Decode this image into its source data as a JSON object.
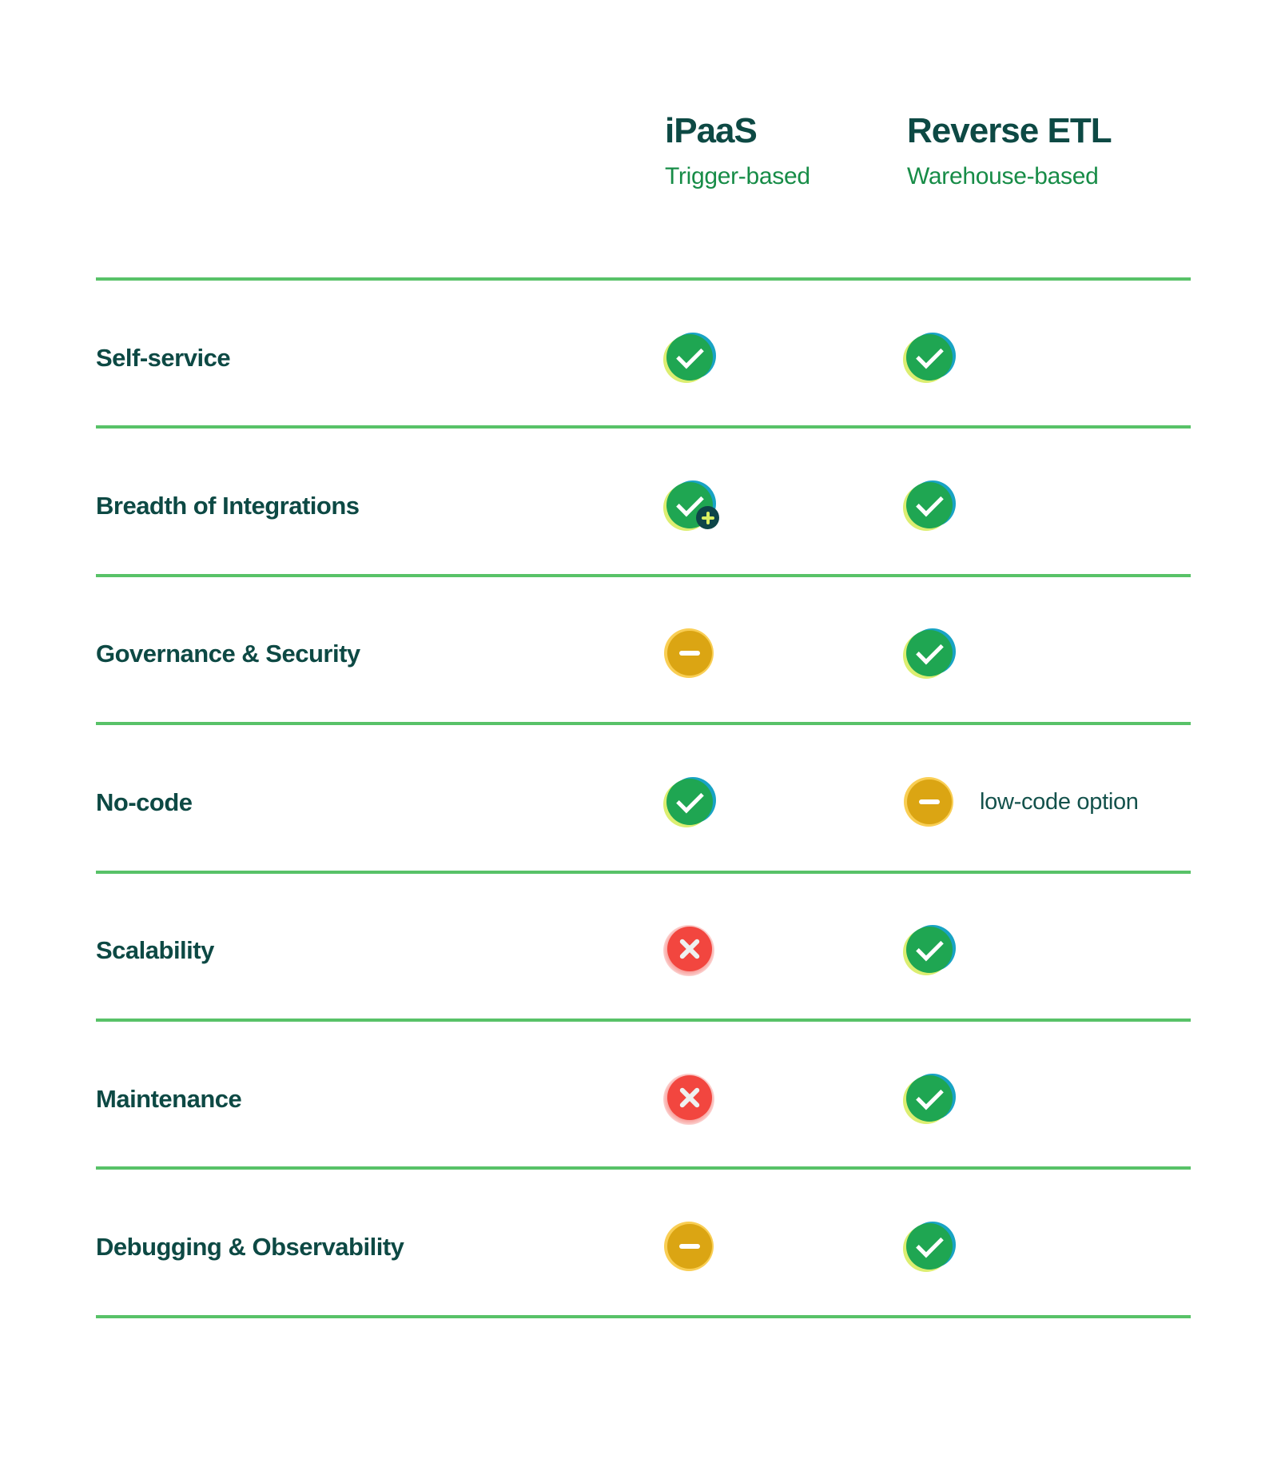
{
  "header": {
    "columns": [
      {
        "title": "iPaaS",
        "subtitle": "Trigger-based"
      },
      {
        "title": "Reverse ETL",
        "subtitle": "Warehouse-based"
      }
    ]
  },
  "table": {
    "rows": [
      {
        "label": "Self-service",
        "ipaas": "check",
        "reverse_etl": "check"
      },
      {
        "label": "Breadth of Integrations",
        "ipaas": "check-plus",
        "reverse_etl": "check"
      },
      {
        "label": "Governance & Security",
        "ipaas": "minus",
        "reverse_etl": "check"
      },
      {
        "label": "No-code",
        "ipaas": "check",
        "reverse_etl": "minus",
        "note": "low-code option"
      },
      {
        "label": "Scalability",
        "ipaas": "cross",
        "reverse_etl": "check"
      },
      {
        "label": "Maintenance",
        "ipaas": "cross",
        "reverse_etl": "check"
      },
      {
        "label": "Debugging & Observability",
        "ipaas": "minus",
        "reverse_etl": "check"
      }
    ]
  },
  "icon_glyphs": {
    "check": "check-icon",
    "check-plus": "check-with-plus-badge-icon",
    "minus": "minus-icon",
    "cross": "cross-icon"
  },
  "colors": {
    "heading_teal": "#0d4944",
    "subtitle_green": "#178c47",
    "divider_green": "#58c268",
    "check_green": "#1fa652",
    "check_lime": "#dcee71",
    "check_teal": "#18a3c4",
    "minus_amber": "#dba513",
    "minus_amber_light": "#f9ce54",
    "cross_red": "#f2463f",
    "badge_teal": "#0d4548",
    "badge_plus_lime": "#d9ef62"
  }
}
